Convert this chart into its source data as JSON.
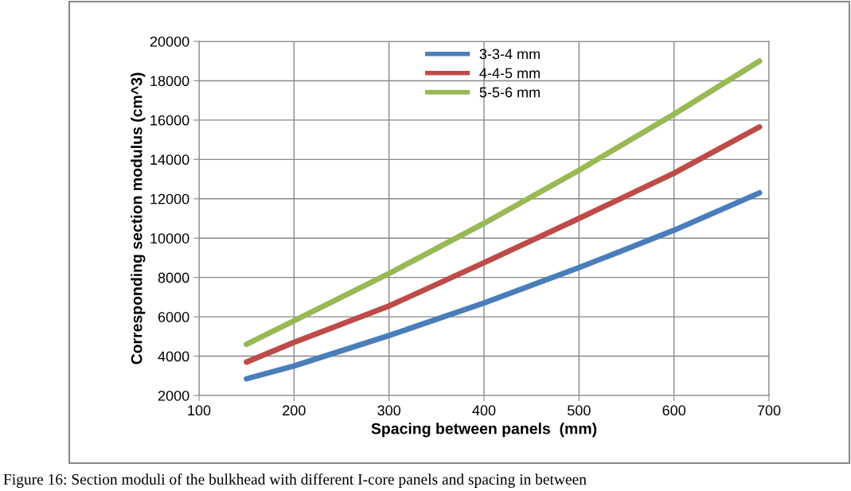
{
  "chart_data": {
    "type": "line",
    "xlabel": "Spacing between panels  (mm)",
    "ylabel": "Corresponding section modulus (cm^3)",
    "x": [
      150,
      200,
      300,
      400,
      500,
      600,
      690
    ],
    "series": [
      {
        "name": "3-3-4 mm",
        "color": "#4a7ebb",
        "values": [
          2850,
          3500,
          5050,
          6700,
          8500,
          10400,
          12300
        ]
      },
      {
        "name": "4-4-5 mm",
        "color": "#be4b48",
        "values": [
          3700,
          4700,
          6550,
          8750,
          11000,
          13300,
          15650
        ]
      },
      {
        "name": "5-5-6 mm",
        "color": "#98b954",
        "values": [
          4600,
          5800,
          8200,
          10750,
          13450,
          16300,
          19000
        ]
      }
    ],
    "xlim": [
      100,
      700
    ],
    "xticks": [
      100,
      200,
      300,
      400,
      500,
      600,
      700
    ],
    "ylim": [
      2000,
      20000
    ],
    "yticks": [
      2000,
      4000,
      6000,
      8000,
      10000,
      12000,
      14000,
      16000,
      18000,
      20000
    ],
    "grid": true,
    "legend": "top",
    "marker": "none",
    "line_style": "solid",
    "annotations": [
      "Figure 16: Section moduli of the bulkhead with different I-core panels and spacing in between"
    ]
  }
}
